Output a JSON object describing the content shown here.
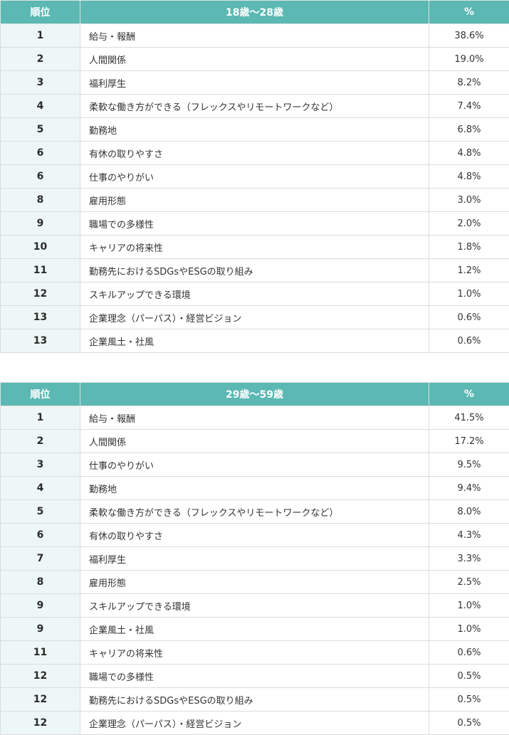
{
  "tables": [
    {
      "headers": {
        "rank": "順位",
        "group": "18歳〜28歳",
        "pct": "%"
      },
      "rows": [
        {
          "rank": "1",
          "item": "給与・報酬",
          "pct": "38.6%"
        },
        {
          "rank": "2",
          "item": "人間関係",
          "pct": "19.0%"
        },
        {
          "rank": "3",
          "item": "福利厚生",
          "pct": "8.2%"
        },
        {
          "rank": "4",
          "item": "柔軟な働き方ができる（フレックスやリモートワークなど）",
          "pct": "7.4%"
        },
        {
          "rank": "5",
          "item": "勤務地",
          "pct": "6.8%"
        },
        {
          "rank": "6",
          "item": "有休の取りやすさ",
          "pct": "4.8%"
        },
        {
          "rank": "6",
          "item": "仕事のやりがい",
          "pct": "4.8%"
        },
        {
          "rank": "8",
          "item": "雇用形態",
          "pct": "3.0%"
        },
        {
          "rank": "9",
          "item": "職場での多様性",
          "pct": "2.0%"
        },
        {
          "rank": "10",
          "item": "キャリアの将来性",
          "pct": "1.8%"
        },
        {
          "rank": "11",
          "item": "勤務先におけるSDGsやESGの取り組み",
          "pct": "1.2%"
        },
        {
          "rank": "12",
          "item": "スキルアップできる環境",
          "pct": "1.0%"
        },
        {
          "rank": "13",
          "item": "企業理念（パーパス）・経営ビジョン",
          "pct": "0.6%"
        },
        {
          "rank": "13",
          "item": "企業風土・社風",
          "pct": "0.6%"
        }
      ]
    },
    {
      "headers": {
        "rank": "順位",
        "group": "29歳〜59歳",
        "pct": "%"
      },
      "rows": [
        {
          "rank": "1",
          "item": "給与・報酬",
          "pct": "41.5%"
        },
        {
          "rank": "2",
          "item": "人間関係",
          "pct": "17.2%"
        },
        {
          "rank": "3",
          "item": "仕事のやりがい",
          "pct": "9.5%"
        },
        {
          "rank": "4",
          "item": "勤務地",
          "pct": "9.4%"
        },
        {
          "rank": "5",
          "item": "柔軟な働き方ができる（フレックスやリモートワークなど）",
          "pct": "8.0%"
        },
        {
          "rank": "6",
          "item": "有休の取りやすさ",
          "pct": "4.3%"
        },
        {
          "rank": "7",
          "item": "福利厚生",
          "pct": "3.3%"
        },
        {
          "rank": "8",
          "item": "雇用形態",
          "pct": "2.5%"
        },
        {
          "rank": "9",
          "item": "スキルアップできる環境",
          "pct": "1.0%"
        },
        {
          "rank": "9",
          "item": "企業風土・社風",
          "pct": "1.0%"
        },
        {
          "rank": "11",
          "item": "キャリアの将来性",
          "pct": "0.6%"
        },
        {
          "rank": "12",
          "item": "職場での多様性",
          "pct": "0.5%"
        },
        {
          "rank": "12",
          "item": "勤務先におけるSDGsやESGの取り組み",
          "pct": "0.5%"
        },
        {
          "rank": "12",
          "item": "企業理念（パーパス）・経営ビジョン",
          "pct": "0.5%"
        }
      ]
    }
  ]
}
